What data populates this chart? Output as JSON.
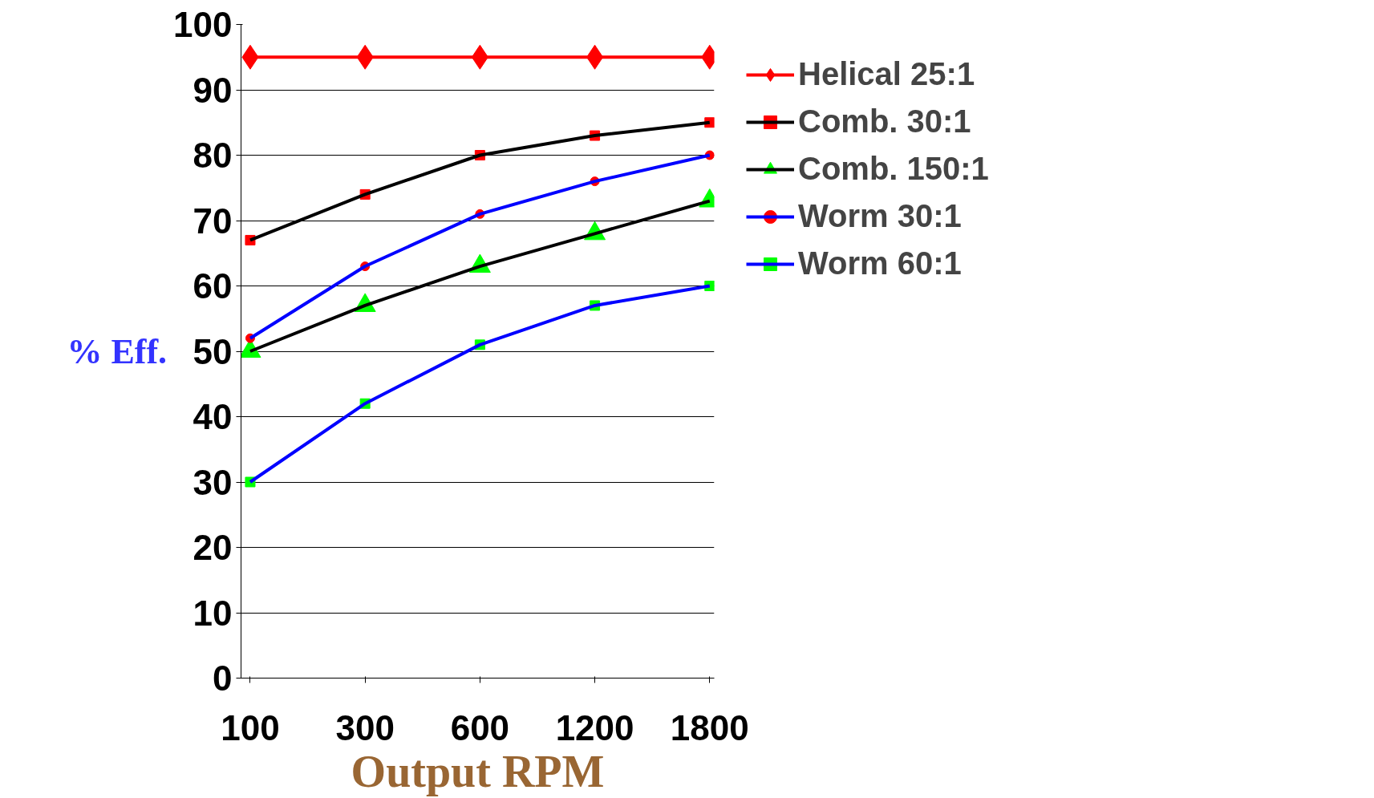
{
  "chart_data": {
    "type": "line",
    "xlabel": "Output RPM",
    "ylabel": "% Eff.",
    "categories": [
      "100",
      "300",
      "600",
      "1200",
      "1800"
    ],
    "ylim": [
      0,
      100
    ],
    "yticks": [
      0,
      10,
      20,
      30,
      40,
      50,
      60,
      70,
      80,
      90,
      100
    ],
    "grid": "y",
    "legend": "right",
    "series": [
      {
        "name": "Helical 25:1",
        "color": "#ff0000",
        "marker": "diamond",
        "colors": [
          "#ff0000",
          "#ff0000",
          "#ff0000",
          "#ff0000",
          "#ff0000"
        ],
        "values": [
          95,
          95,
          95,
          95,
          95
        ]
      },
      {
        "name": "Comb. 30:1",
        "color": "#000000",
        "marker": "square",
        "colors": [
          "#ff0000",
          "#ff0000",
          "#ff0000",
          "#ff0000",
          "#ff0000"
        ],
        "values": [
          67,
          74,
          80,
          83,
          85
        ]
      },
      {
        "name": "Comb. 150:1",
        "color": "#000000",
        "marker": "triangle",
        "colors": [
          "#00ff00",
          "#00ff00",
          "#00ff00",
          "#00ff00",
          "#00ff00"
        ],
        "values": [
          50,
          57,
          63,
          68,
          73
        ]
      },
      {
        "name": "Worm 30:1",
        "color": "#0000ff",
        "marker": "circle",
        "colors": [
          "#ff0000",
          "#ff0000",
          "#ff0000",
          "#ff0000",
          "#ff0000"
        ],
        "values": [
          52,
          63,
          71,
          76,
          80
        ]
      },
      {
        "name": "Worm 60:1",
        "color": "#0000ff",
        "marker": "square",
        "colors": [
          "#00ff00",
          "#00ff00",
          "#00ff00",
          "#00ff00",
          "#00ff00"
        ],
        "values": [
          30,
          42,
          51,
          57,
          60
        ]
      }
    ]
  }
}
